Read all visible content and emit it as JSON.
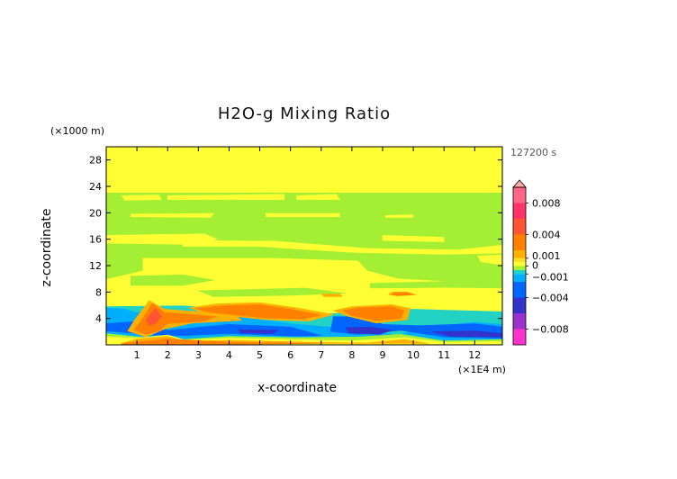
{
  "chart_data": {
    "type": "heatmap",
    "title": "H2O-g Mixing Ratio",
    "xlabel": "x-coordinate",
    "ylabel": "z-coordinate",
    "x_unit_label": "(×1E4 m)",
    "y_unit_label": "(×1000 m)",
    "time_label": "127200 s",
    "xlim": [
      0,
      12.9
    ],
    "ylim": [
      0,
      30
    ],
    "x_ticks": [
      "1",
      "2",
      "3",
      "4",
      "5",
      "6",
      "7",
      "8",
      "9",
      "10",
      "11",
      "12"
    ],
    "y_ticks": [
      "4",
      "8",
      "12",
      "16",
      "20",
      "24",
      "28"
    ],
    "background_class": "0 to 0.001",
    "colorbar": {
      "range": [
        -0.01,
        0.01
      ],
      "labels": [
        {
          "value": 0.008,
          "text": "0.008"
        },
        {
          "value": 0.004,
          "text": "0.004"
        },
        {
          "value": 0.001,
          "text": "0.001"
        },
        {
          "value": 0.0,
          "text": "0"
        },
        {
          "value": -0.001,
          "text": "−0.001"
        },
        {
          "value": -0.004,
          "text": "−0.004"
        },
        {
          "value": -0.008,
          "text": "−0.008"
        }
      ],
      "bands": [
        {
          "from": -0.01,
          "to": -0.008,
          "color": "#ff33cc"
        },
        {
          "from": -0.008,
          "to": -0.006,
          "color": "#9933cc"
        },
        {
          "from": -0.006,
          "to": -0.004,
          "color": "#3333cc"
        },
        {
          "from": -0.004,
          "to": -0.002,
          "color": "#0066ff"
        },
        {
          "from": -0.002,
          "to": -0.001,
          "color": "#00b0ff"
        },
        {
          "from": -0.001,
          "to": -0.0005,
          "color": "#22d3c3"
        },
        {
          "from": -0.0005,
          "to": 0.0,
          "color": "#a4ee33"
        },
        {
          "from": 0.0,
          "to": 0.0005,
          "color": "#ffff33"
        },
        {
          "from": 0.0005,
          "to": 0.001,
          "color": "#ffdd22"
        },
        {
          "from": 0.001,
          "to": 0.002,
          "color": "#ffb000"
        },
        {
          "from": 0.002,
          "to": 0.004,
          "color": "#ff8000"
        },
        {
          "from": 0.004,
          "to": 0.006,
          "color": "#ff5533"
        },
        {
          "from": 0.006,
          "to": 0.008,
          "color": "#ff3366"
        },
        {
          "from": 0.008,
          "to": 0.01,
          "color": "#ff6688"
        },
        {
          "from": 0.01,
          "to": 0.012,
          "color": "#ffaaaa"
        }
      ]
    },
    "regions": [
      {
        "color": "#a4ee33",
        "pts": [
          [
            0,
            23
          ],
          [
            12.9,
            23
          ],
          [
            12.9,
            8.5
          ],
          [
            0,
            8.5
          ]
        ]
      },
      {
        "color": "#ffff33",
        "pts": [
          [
            0.5,
            22.6
          ],
          [
            1.7,
            22.7
          ],
          [
            1.8,
            22
          ],
          [
            0.6,
            21.9
          ]
        ]
      },
      {
        "color": "#ffff33",
        "pts": [
          [
            2.0,
            22.6
          ],
          [
            5.8,
            22.8
          ],
          [
            5.8,
            22.0
          ],
          [
            2.0,
            22.0
          ]
        ]
      },
      {
        "color": "#ffff33",
        "pts": [
          [
            6.2,
            22.6
          ],
          [
            7.5,
            22.8
          ],
          [
            7.6,
            22.0
          ],
          [
            6.2,
            22.0
          ]
        ]
      },
      {
        "color": "#ffff33",
        "pts": [
          [
            0.8,
            19.8
          ],
          [
            3.5,
            19.9
          ],
          [
            3.4,
            19.3
          ],
          [
            0.8,
            19.4
          ]
        ]
      },
      {
        "color": "#ffff33",
        "pts": [
          [
            5.2,
            19.9
          ],
          [
            7.6,
            19.9
          ],
          [
            7.6,
            19.4
          ],
          [
            5.2,
            19.4
          ]
        ]
      },
      {
        "color": "#ffff33",
        "pts": [
          [
            9.1,
            19.6
          ],
          [
            10.0,
            19.7
          ],
          [
            10.0,
            19.3
          ],
          [
            9.1,
            19.3
          ]
        ]
      },
      {
        "color": "#ffff33",
        "pts": [
          [
            0,
            16.6
          ],
          [
            3.2,
            16.8
          ],
          [
            3.6,
            16.0
          ],
          [
            2.8,
            15.2
          ],
          [
            0,
            15.4
          ]
        ]
      },
      {
        "color": "#ffff33",
        "pts": [
          [
            2.5,
            15.8
          ],
          [
            5.5,
            15.7
          ],
          [
            8.5,
            14.6
          ],
          [
            11.5,
            14.4
          ],
          [
            12.9,
            15.1
          ],
          [
            12.9,
            13.9
          ],
          [
            11.0,
            13.7
          ],
          [
            8.0,
            14.0
          ],
          [
            5.0,
            14.9
          ],
          [
            2.5,
            14.9
          ]
        ]
      },
      {
        "color": "#ffff33",
        "pts": [
          [
            9.0,
            16.6
          ],
          [
            11.0,
            16.3
          ],
          [
            11.0,
            15.6
          ],
          [
            9.0,
            15.8
          ]
        ]
      },
      {
        "color": "#ffff33",
        "pts": [
          [
            12.1,
            13.5
          ],
          [
            12.9,
            13.6
          ],
          [
            12.9,
            12.1
          ],
          [
            12.2,
            12.6
          ]
        ]
      },
      {
        "color": "#ffff33",
        "pts": [
          [
            1.2,
            13.1
          ],
          [
            5.5,
            13.1
          ],
          [
            8.2,
            12.7
          ],
          [
            8.5,
            11.2
          ],
          [
            9.5,
            10.0
          ],
          [
            12.5,
            9.2
          ],
          [
            12.9,
            9.0
          ],
          [
            12.9,
            8.5
          ],
          [
            0,
            8.5
          ],
          [
            0,
            9.9
          ],
          [
            1.2,
            11.2
          ]
        ]
      },
      {
        "color": "#ffff33",
        "pts": [
          [
            0,
            8.5
          ],
          [
            12.9,
            8.5
          ],
          [
            12.9,
            5.8
          ],
          [
            0,
            5.8
          ]
        ]
      },
      {
        "color": "#a4ee33",
        "pts": [
          [
            0.8,
            10.4
          ],
          [
            2.5,
            10.6
          ],
          [
            3.5,
            9.8
          ],
          [
            2.5,
            9.0
          ],
          [
            0.8,
            9.0
          ]
        ]
      },
      {
        "color": "#a4ee33",
        "pts": [
          [
            3.0,
            8.2
          ],
          [
            6.5,
            8.6
          ],
          [
            7.8,
            7.8
          ],
          [
            6.0,
            7.5
          ],
          [
            3.5,
            7.3
          ]
        ]
      },
      {
        "color": "#a4ee33",
        "pts": [
          [
            8.6,
            9.3
          ],
          [
            11.0,
            9.6
          ],
          [
            12.9,
            9.4
          ],
          [
            12.9,
            8.6
          ],
          [
            11.0,
            8.7
          ],
          [
            8.6,
            8.6
          ]
        ]
      },
      {
        "color": "#22d3c3",
        "pts": [
          [
            0,
            5.8
          ],
          [
            2.5,
            5.9
          ],
          [
            5.0,
            5.0
          ],
          [
            7.2,
            4.7
          ],
          [
            10.0,
            5.4
          ],
          [
            12.9,
            5.0
          ],
          [
            12.9,
            0
          ],
          [
            0,
            0
          ]
        ]
      },
      {
        "color": "#00b0ff",
        "pts": [
          [
            0,
            5.0
          ],
          [
            2.0,
            4.8
          ],
          [
            4.5,
            4.2
          ],
          [
            6.0,
            3.2
          ],
          [
            7.0,
            2.8
          ],
          [
            8.5,
            2.3
          ],
          [
            9.5,
            1.4
          ],
          [
            10.2,
            2.6
          ],
          [
            12.0,
            3.4
          ],
          [
            12.9,
            3.1
          ],
          [
            12.9,
            0
          ],
          [
            0,
            0
          ]
        ]
      },
      {
        "color": "#a4ee33",
        "pts": [
          [
            0,
            0
          ],
          [
            12.9,
            0
          ],
          [
            12.9,
            0.8
          ],
          [
            11.0,
            0.6
          ],
          [
            9.6,
            1.6
          ],
          [
            8.2,
            1.2
          ],
          [
            6.2,
            1.1
          ],
          [
            4.0,
            1.3
          ],
          [
            2.5,
            0.8
          ],
          [
            1.5,
            1.0
          ],
          [
            0,
            1.7
          ]
        ]
      },
      {
        "color": "#0066ff",
        "pts": [
          [
            0,
            3.2
          ],
          [
            1.2,
            3.6
          ],
          [
            2.0,
            2.2
          ],
          [
            4.0,
            3.1
          ],
          [
            6.0,
            2.7
          ],
          [
            7.0,
            1.4
          ],
          [
            6.2,
            1.3
          ],
          [
            4.0,
            1.7
          ],
          [
            2.5,
            1.4
          ],
          [
            1.5,
            1.5
          ],
          [
            0,
            2.1
          ]
        ]
      },
      {
        "color": "#0066ff",
        "pts": [
          [
            7.4,
            4.3
          ],
          [
            8.6,
            4.2
          ],
          [
            9.0,
            3.1
          ],
          [
            10.2,
            2.9
          ],
          [
            12.0,
            3.2
          ],
          [
            12.9,
            2.7
          ],
          [
            12.9,
            1.0
          ],
          [
            11.0,
            1.2
          ],
          [
            9.6,
            2.2
          ],
          [
            8.2,
            1.6
          ],
          [
            7.3,
            2.0
          ]
        ]
      },
      {
        "color": "#3333cc",
        "pts": [
          [
            7.8,
            2.6
          ],
          [
            8.6,
            2.7
          ],
          [
            9.3,
            2.2
          ],
          [
            8.9,
            1.6
          ],
          [
            7.9,
            1.8
          ]
        ]
      },
      {
        "color": "#3333cc",
        "pts": [
          [
            10.6,
            2.0
          ],
          [
            12.0,
            2.1
          ],
          [
            12.9,
            1.7
          ],
          [
            12.9,
            1.2
          ],
          [
            11.2,
            1.3
          ]
        ]
      },
      {
        "color": "#3333cc",
        "pts": [
          [
            4.3,
            2.3
          ],
          [
            5.6,
            2.2
          ],
          [
            5.4,
            1.7
          ],
          [
            4.4,
            1.8
          ]
        ]
      },
      {
        "color": "#ffff33",
        "pts": [
          [
            0,
            1.2
          ],
          [
            1.0,
            1.0
          ],
          [
            2.0,
            1.5
          ],
          [
            2.6,
            0.7
          ],
          [
            4.0,
            1.0
          ],
          [
            6.0,
            0.8
          ],
          [
            8.0,
            0.6
          ],
          [
            9.7,
            1.1
          ],
          [
            11.0,
            0.4
          ],
          [
            12.9,
            0.5
          ],
          [
            12.9,
            0
          ],
          [
            0,
            0
          ]
        ]
      },
      {
        "color": "#ffb000",
        "pts": [
          [
            1.0,
            0.9
          ],
          [
            2.0,
            1.3
          ],
          [
            2.6,
            0.5
          ],
          [
            4.0,
            0.7
          ],
          [
            6.5,
            0.4
          ],
          [
            8.5,
            0.3
          ],
          [
            9.7,
            0.8
          ],
          [
            10.5,
            0.2
          ],
          [
            0.5,
            0.2
          ]
        ]
      },
      {
        "color": "#ff8000",
        "pts": [
          [
            0.5,
            0.2
          ],
          [
            2.0,
            0.9
          ],
          [
            4.0,
            0.4
          ],
          [
            7.0,
            0.2
          ],
          [
            0.5,
            0.0
          ]
        ]
      },
      {
        "color": "#ffb000",
        "pts": [
          [
            0.9,
            3.6
          ],
          [
            1.4,
            6.7
          ],
          [
            1.9,
            5.4
          ],
          [
            4.2,
            4.6
          ],
          [
            4.4,
            3.7
          ],
          [
            2.8,
            3.3
          ],
          [
            1.9,
            2.4
          ],
          [
            1.3,
            1.2
          ],
          [
            0.7,
            2.1
          ]
        ]
      },
      {
        "color": "#ff8000",
        "pts": [
          [
            1.1,
            3.4
          ],
          [
            1.5,
            6.3
          ],
          [
            1.9,
            4.9
          ],
          [
            3.6,
            4.3
          ],
          [
            3.2,
            3.6
          ],
          [
            2.0,
            3.2
          ],
          [
            1.7,
            2.1
          ],
          [
            1.3,
            1.6
          ],
          [
            0.9,
            2.3
          ]
        ]
      },
      {
        "color": "#ff5533",
        "pts": [
          [
            1.3,
            3.8
          ],
          [
            1.6,
            5.5
          ],
          [
            1.8,
            4.3
          ],
          [
            1.6,
            3.2
          ],
          [
            1.4,
            2.9
          ]
        ]
      },
      {
        "color": "#ffb000",
        "pts": [
          [
            2.7,
            5.6
          ],
          [
            3.6,
            6.2
          ],
          [
            5.0,
            6.4
          ],
          [
            6.2,
            5.6
          ],
          [
            7.4,
            4.6
          ],
          [
            6.6,
            3.6
          ],
          [
            5.2,
            3.8
          ],
          [
            3.2,
            4.8
          ]
        ]
      },
      {
        "color": "#ff8000",
        "pts": [
          [
            2.9,
            5.5
          ],
          [
            3.8,
            5.9
          ],
          [
            5.0,
            6.1
          ],
          [
            6.1,
            5.3
          ],
          [
            7.0,
            4.5
          ],
          [
            6.4,
            3.9
          ],
          [
            5.1,
            4.1
          ],
          [
            3.4,
            4.9
          ]
        ]
      },
      {
        "color": "#ffb000",
        "pts": [
          [
            8.0,
            5.8
          ],
          [
            9.3,
            6.1
          ],
          [
            9.9,
            5.5
          ],
          [
            9.8,
            3.8
          ],
          [
            8.8,
            3.3
          ],
          [
            7.9,
            4.3
          ],
          [
            7.4,
            5.2
          ]
        ]
      },
      {
        "color": "#ff8000",
        "pts": [
          [
            8.2,
            5.6
          ],
          [
            9.3,
            5.8
          ],
          [
            9.7,
            5.2
          ],
          [
            9.6,
            4.0
          ],
          [
            8.8,
            3.7
          ],
          [
            8.0,
            4.4
          ],
          [
            7.7,
            5.2
          ]
        ]
      },
      {
        "color": "#ffb000",
        "pts": [
          [
            9.3,
            8.0
          ],
          [
            9.8,
            8.0
          ],
          [
            10.1,
            7.6
          ],
          [
            9.5,
            7.4
          ],
          [
            9.2,
            7.6
          ]
        ]
      },
      {
        "color": "#ff8000",
        "pts": [
          [
            9.4,
            7.9
          ],
          [
            9.8,
            7.9
          ],
          [
            10.0,
            7.6
          ],
          [
            9.5,
            7.5
          ],
          [
            9.3,
            7.6
          ]
        ]
      },
      {
        "color": "#ffb000",
        "pts": [
          [
            7.0,
            7.7
          ],
          [
            7.6,
            7.7
          ],
          [
            7.7,
            7.3
          ],
          [
            7.1,
            7.3
          ]
        ]
      },
      {
        "color": "#00b0ff",
        "pts": [
          [
            0,
            5.6
          ],
          [
            0.6,
            5.4
          ],
          [
            0.9,
            5.0
          ],
          [
            0,
            4.8
          ]
        ]
      }
    ]
  }
}
